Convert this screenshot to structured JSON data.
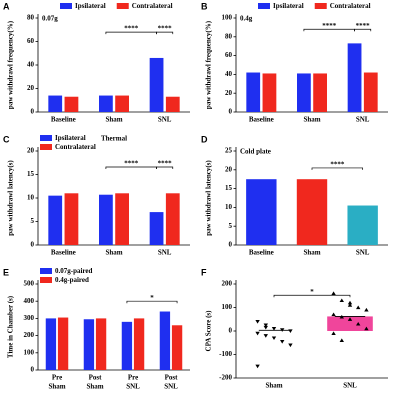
{
  "chart_data": [
    {
      "type": "grouped-bar",
      "label": "A",
      "title": "0.07g",
      "y_label": "paw withdrawl frequency(%)",
      "categories": [
        "Baseline",
        "Sham",
        "SNL"
      ],
      "series": [
        {
          "name": "Ipsilateral",
          "color": "#1f2ff0",
          "values": [
            14,
            14,
            46
          ]
        },
        {
          "name": "Contralateral",
          "color": "#f0281e",
          "values": [
            13,
            14,
            13
          ]
        }
      ],
      "ylim": [
        0,
        80
      ],
      "yticks": [
        0,
        20,
        40,
        60,
        80
      ],
      "legend": "top",
      "annotations": [
        "****",
        "****"
      ]
    },
    {
      "type": "grouped-bar",
      "label": "B",
      "title": "0.4g",
      "y_label": "paw withdrawl frequency(%)",
      "categories": [
        "Baseline",
        "Sham",
        "SNL"
      ],
      "series": [
        {
          "name": "Ipsilateral",
          "color": "#1f2ff0",
          "values": [
            42,
            41,
            73
          ]
        },
        {
          "name": "Contralateral",
          "color": "#f0281e",
          "values": [
            41,
            41,
            42
          ]
        }
      ],
      "ylim": [
        0,
        100
      ],
      "yticks": [
        0,
        20,
        40,
        60,
        80,
        100
      ],
      "legend": "top",
      "annotations": [
        "****",
        "****"
      ]
    },
    {
      "type": "grouped-bar",
      "label": "C",
      "title": "Thermal",
      "y_label": "paw withdrawl latency(s)",
      "categories": [
        "Baseline",
        "Sham",
        "SNL"
      ],
      "series": [
        {
          "name": "Ipsilateral",
          "color": "#1f2ff0",
          "values": [
            10.5,
            10.7,
            7
          ]
        },
        {
          "name": "Contralateral",
          "color": "#f0281e",
          "values": [
            11,
            11,
            11
          ]
        }
      ],
      "ylim": [
        0,
        20
      ],
      "yticks": [
        0,
        5,
        10,
        15,
        20
      ],
      "legend": "top-left",
      "annotations": [
        "****",
        "****"
      ]
    },
    {
      "type": "bar",
      "label": "D",
      "title": "Cold plate",
      "y_label": "paw withdrawl latency(s)",
      "categories": [
        "Baseline",
        "Sham",
        "SNL"
      ],
      "values": [
        17.5,
        17.5,
        10.5
      ],
      "colors": [
        "#1f2ff0",
        "#f0281e",
        "#2aaec4"
      ],
      "ylim": [
        0,
        25
      ],
      "yticks": [
        0,
        5,
        10,
        15,
        20,
        25
      ],
      "annotations": [
        "****"
      ]
    },
    {
      "type": "grouped-bar",
      "label": "E",
      "y_label": "Time in Chamber (s)",
      "categories": [
        "Pre",
        "Post",
        "Pre",
        "Post"
      ],
      "groups": [
        "Sham",
        "Sham",
        "SNL",
        "SNL"
      ],
      "series": [
        {
          "name": "0.07g-paired",
          "color": "#1f2ff0",
          "values": [
            300,
            295,
            280,
            340
          ]
        },
        {
          "name": "0.4g-paired",
          "color": "#f0281e",
          "values": [
            305,
            300,
            300,
            260
          ]
        }
      ],
      "ylim": [
        0,
        500
      ],
      "yticks": [
        0,
        100,
        200,
        300,
        400,
        500
      ],
      "legend": "top-left",
      "annotations": [
        "*"
      ]
    },
    {
      "type": "bar-scatter",
      "label": "F",
      "y_label": "CPA Score (s)",
      "categories": [
        "Sham",
        "SNL"
      ],
      "values": [
        3,
        62
      ],
      "colors": [
        "none",
        "#f0459b"
      ],
      "points": [
        [
          40,
          25,
          10,
          5,
          0,
          -10,
          -20,
          -30,
          -45,
          -60,
          -150,
          15
        ],
        [
          160,
          130,
          120,
          100,
          90,
          70,
          60,
          50,
          30,
          10,
          -10,
          -40,
          110
        ]
      ],
      "ylim": [
        -200,
        200
      ],
      "yticks": [
        -200,
        -100,
        0,
        100,
        200
      ],
      "annotations": [
        "*"
      ]
    }
  ]
}
